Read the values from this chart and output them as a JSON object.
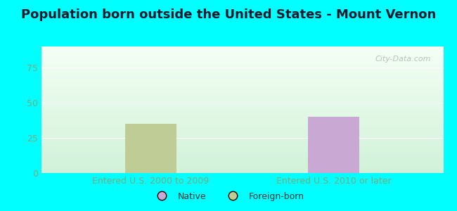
{
  "title": "Population born outside the United States - Mount Vernon",
  "categories": [
    "Entered U.S. 2000 to 2009",
    "Entered U.S. 2010 or later"
  ],
  "foreign_value": 35,
  "native_value": 40,
  "native_color": "#c9a8d4",
  "foreign_color": "#bfcc96",
  "ylim": [
    0,
    90
  ],
  "yticks": [
    0,
    25,
    50,
    75
  ],
  "background_outer": "#00ffff",
  "axis_label_color": "#7aaa7a",
  "bar_width": 0.28,
  "legend_native_label": "Native",
  "legend_foreign_label": "Foreign-born",
  "watermark": "City-Data.com",
  "title_fontsize": 13,
  "tick_label_fontsize": 9,
  "cat_fontsize": 9
}
